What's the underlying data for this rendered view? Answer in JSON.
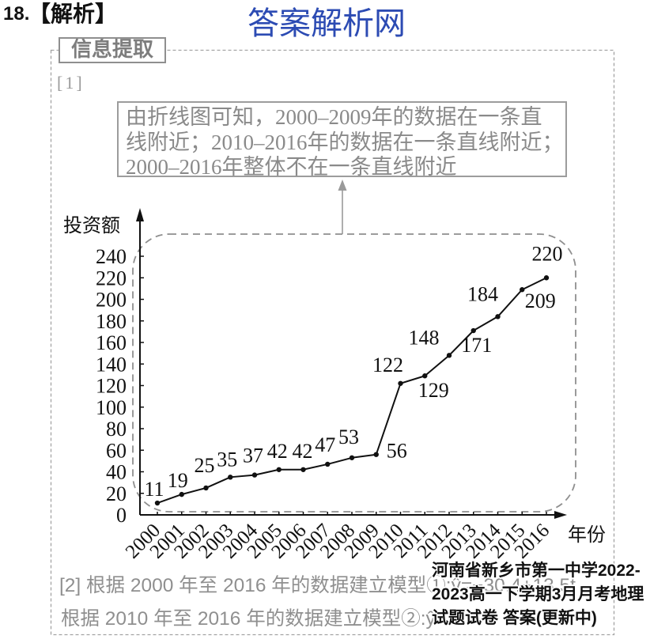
{
  "header": {
    "question_number": "18.",
    "section": "【解析】",
    "site_title": "答案解析网"
  },
  "panel": {
    "label": "信息提取",
    "part1_marker": "[1]",
    "callout_lines": [
      "由折线图可知，2000–2009年的数据在一条直",
      "线附近；2010–2016年的数据在一条直线附近；",
      "2000–2016年整体不在一条直线附近"
    ],
    "part2_lines": [
      "[2] 根据 2000 年至 2016 年的数据建立模型①:ŷ=−30.4+13.5t",
      "根据 2010 年至 2016 年的数据建立模型②:ŷ="
    ]
  },
  "watermark": {
    "lines": [
      "河南省新乡市第一中学2022-",
      "2023高一下学期3月月考地理",
      "试题试卷 答案(更新中)"
    ]
  },
  "colors": {
    "site_title": "#2c4bb3",
    "panel_text": "#8a8a8a",
    "panel_border": "#9a9a9a",
    "chart_ink": "#111111"
  },
  "chart_data": {
    "type": "line",
    "x": [
      2000,
      2001,
      2002,
      2003,
      2004,
      2005,
      2006,
      2007,
      2008,
      2009,
      2010,
      2011,
      2012,
      2013,
      2014,
      2015,
      2016
    ],
    "values": [
      11,
      19,
      25,
      35,
      37,
      42,
      42,
      47,
      53,
      56,
      122,
      129,
      148,
      171,
      184,
      209,
      220
    ],
    "xlabel": "年份",
    "ylabel": "投资额",
    "ylim": [
      0,
      240
    ],
    "yticks": [
      0,
      20,
      40,
      60,
      80,
      100,
      120,
      140,
      160,
      180,
      200,
      220,
      240
    ],
    "data_labels": true,
    "grid": false
  }
}
